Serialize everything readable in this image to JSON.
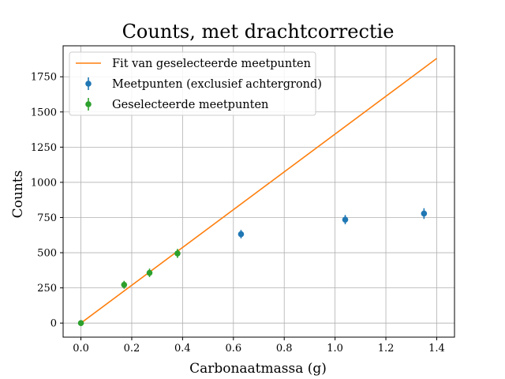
{
  "chart_data": {
    "type": "scatter",
    "title": "Counts, met drachtcorrectie",
    "xlabel": "Carbonaatmassa (g)",
    "ylabel": "Counts",
    "xlim": [
      -0.07,
      1.47
    ],
    "ylim": [
      -100,
      1970
    ],
    "grid": true,
    "legend_position": "top-left",
    "x_ticks": [
      0.0,
      0.2,
      0.4,
      0.6,
      0.8,
      1.0,
      1.2,
      1.4
    ],
    "x_tick_labels": [
      "0.0",
      "0.2",
      "0.4",
      "0.6",
      "0.8",
      "1.0",
      "1.2",
      "1.4"
    ],
    "y_ticks": [
      0,
      250,
      500,
      750,
      1000,
      1250,
      1500,
      1750
    ],
    "y_tick_labels": [
      "0",
      "250",
      "500",
      "750",
      "1000",
      "1250",
      "1500",
      "1750"
    ],
    "series": [
      {
        "name": "Fit van geselecteerde meetpunten",
        "kind": "line",
        "color": "#ff7f0e",
        "x": [
          0.0,
          1.4
        ],
        "y": [
          0,
          1880
        ]
      },
      {
        "name": "Meetpunten (exclusief achtergrond)",
        "kind": "errorbar",
        "color": "#1f77b4",
        "x": [
          0.63,
          1.04,
          1.35
        ],
        "y": [
          632,
          735,
          778
        ],
        "yerr": [
          30,
          33,
          38
        ]
      },
      {
        "name": "Geselecteerde meetpunten",
        "kind": "errorbar",
        "color": "#2ca02c",
        "x": [
          0.0,
          0.17,
          0.27,
          0.38
        ],
        "y": [
          0,
          272,
          357,
          495
        ],
        "yerr": [
          10,
          28,
          30,
          32
        ]
      }
    ]
  }
}
